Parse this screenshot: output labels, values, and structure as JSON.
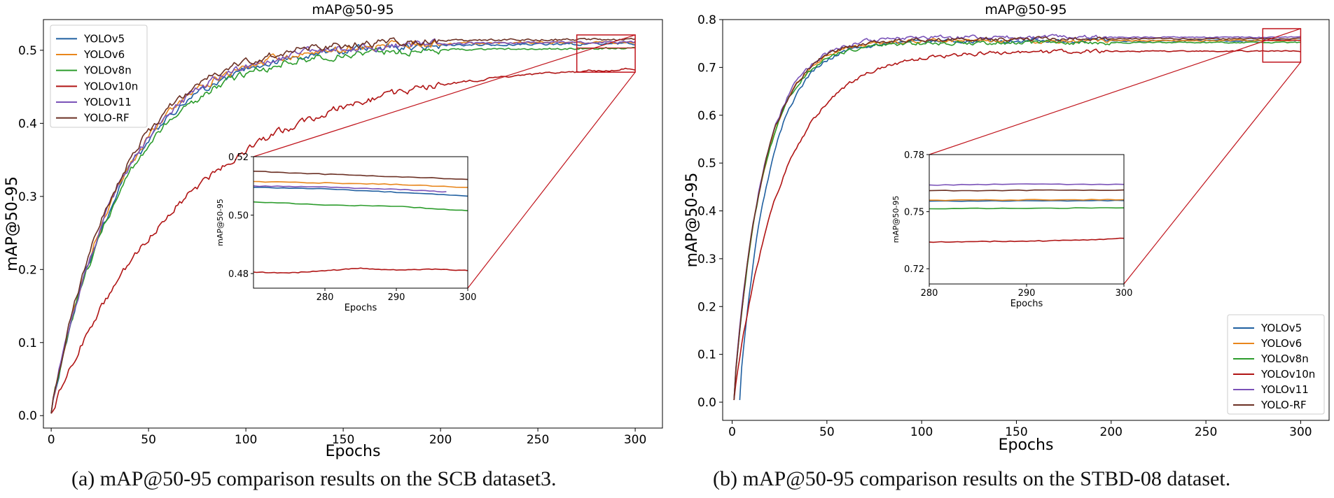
{
  "colors": {
    "YOLOv5": "#1f5fa0",
    "YOLOv6": "#e8861c",
    "YOLOv8n": "#2c9c2c",
    "YOLOv10n": "#b01414",
    "YOLOv11": "#7a52b8",
    "YOLO-RF": "#6b3024",
    "zoom": "#c0141c"
  },
  "chart_data": [
    {
      "id": "a",
      "type": "line",
      "title": "mAP@50-95",
      "xlabel": "Epochs",
      "ylabel": "mAP@50-95",
      "xlim": [
        -4,
        314
      ],
      "ylim": [
        -0.017,
        0.542
      ],
      "xticks": [
        0,
        50,
        100,
        150,
        200,
        250,
        300
      ],
      "yticks": [
        0.0,
        0.1,
        0.2,
        0.3,
        0.4,
        0.5
      ],
      "ytick_labels": [
        "0.0",
        "0.1",
        "0.2",
        "0.3",
        "0.4",
        "0.5"
      ],
      "legend": "top-left",
      "caption": "(a) mAP@50-95 comparison results on the SCB dataset3.",
      "series": [
        {
          "name": "YOLOv5",
          "final": 0.509,
          "tau": 38,
          "start": 0,
          "end": 300,
          "noise": 0.006
        },
        {
          "name": "YOLOv6",
          "final": 0.511,
          "tau": 37,
          "start": 0,
          "end": 300,
          "noise": 0.006
        },
        {
          "name": "YOLOv8n",
          "final": 0.503,
          "tau": 38,
          "start": 0,
          "end": 300,
          "noise": 0.006
        },
        {
          "name": "YOLOv10n",
          "final": 0.482,
          "tau": 72,
          "start": 0,
          "end": 300,
          "noise": 0.006
        },
        {
          "name": "YOLOv11",
          "final": 0.511,
          "tau": 37,
          "start": 0,
          "end": 300,
          "noise": 0.006
        },
        {
          "name": "YOLO-RF",
          "final": 0.515,
          "tau": 36,
          "start": 0,
          "end": 300,
          "noise": 0.006
        }
      ],
      "zoom_box": {
        "x": [
          270,
          300
        ],
        "y": [
          0.47,
          0.521
        ]
      },
      "inset": {
        "xlabel": "Epochs",
        "ylabel": "mAP@50-95",
        "xlim": [
          270,
          300
        ],
        "ylim": [
          0.475,
          0.52
        ],
        "xticks": [
          280,
          290,
          300
        ],
        "yticks": [
          0.48,
          0.5,
          0.52
        ],
        "ytick_labels": [
          "0.48",
          "0.50",
          "0.52"
        ],
        "series": [
          {
            "name": "YOLOv5",
            "values": [
              [
                270,
                0.5095
              ],
              [
                280,
                0.509
              ],
              [
                290,
                0.5078
              ],
              [
                300,
                0.5065
              ]
            ]
          },
          {
            "name": "YOLOv6",
            "values": [
              [
                270,
                0.5115
              ],
              [
                280,
                0.511
              ],
              [
                290,
                0.5105
              ],
              [
                300,
                0.5095
              ]
            ]
          },
          {
            "name": "YOLOv8n",
            "values": [
              [
                270,
                0.5045
              ],
              [
                280,
                0.5035
              ],
              [
                290,
                0.503
              ],
              [
                300,
                0.5015
              ]
            ]
          },
          {
            "name": "YOLOv10n",
            "values": [
              [
                270,
                0.4805
              ],
              [
                275,
                0.4802
              ],
              [
                280,
                0.481
              ],
              [
                285,
                0.4818
              ],
              [
                290,
                0.4812
              ],
              [
                295,
                0.4815
              ],
              [
                300,
                0.481
              ]
            ]
          },
          {
            "name": "YOLOv11",
            "values": [
              [
                270,
                0.51
              ],
              [
                280,
                0.5096
              ],
              [
                290,
                0.5088
              ],
              [
                297,
                0.508
              ]
            ]
          },
          {
            "name": "YOLO-RF",
            "values": [
              [
                270,
                0.515
              ],
              [
                280,
                0.514
              ],
              [
                290,
                0.5132
              ],
              [
                300,
                0.5122
              ]
            ]
          }
        ]
      }
    },
    {
      "id": "b",
      "type": "line",
      "title": "mAP@50-95",
      "xlabel": "Epochs",
      "ylabel": "mAP@50-95",
      "xlim": [
        -5,
        315
      ],
      "ylim": [
        -0.038,
        0.8
      ],
      "xticks": [
        0,
        50,
        100,
        150,
        200,
        250,
        300
      ],
      "yticks": [
        0.0,
        0.1,
        0.2,
        0.3,
        0.4,
        0.5,
        0.6,
        0.7,
        0.8
      ],
      "ytick_labels": [
        "0.0",
        "0.1",
        "0.2",
        "0.3",
        "0.4",
        "0.5",
        "0.6",
        "0.7",
        "0.8"
      ],
      "legend": "bottom-right",
      "caption": "(b) mAP@50-95 comparison results on the STBD-08 dataset.",
      "series": [
        {
          "name": "YOLOv5",
          "final": 0.756,
          "tau": 16,
          "start": 4,
          "end": 300,
          "noise": 0.005
        },
        {
          "name": "YOLOv6",
          "final": 0.756,
          "tau": 16,
          "start": 1,
          "end": 300,
          "noise": 0.005
        },
        {
          "name": "YOLOv8n",
          "final": 0.752,
          "tau": 16,
          "start": 1,
          "end": 300,
          "noise": 0.005
        },
        {
          "name": "YOLOv10n",
          "final": 0.734,
          "tau": 26,
          "start": 1,
          "end": 300,
          "noise": 0.005
        },
        {
          "name": "YOLOv11",
          "final": 0.763,
          "tau": 16,
          "start": 1,
          "end": 300,
          "noise": 0.005
        },
        {
          "name": "YOLO-RF",
          "final": 0.76,
          "tau": 16,
          "start": 1,
          "end": 300,
          "noise": 0.005
        }
      ],
      "zoom_box": {
        "x": [
          280,
          300
        ],
        "y": [
          0.711,
          0.781
        ]
      },
      "inset": {
        "xlabel": "Epochs",
        "ylabel": "mAP@50-95",
        "xlim": [
          280,
          300
        ],
        "ylim": [
          0.712,
          0.78
        ],
        "xticks": [
          280,
          290,
          300
        ],
        "yticks": [
          0.72,
          0.75,
          0.78
        ],
        "ytick_labels": [
          "0.72",
          "0.75",
          "0.78"
        ],
        "series": [
          {
            "name": "YOLOv5",
            "values": [
              [
                280,
                0.7555
              ],
              [
                290,
                0.7557
              ],
              [
                300,
                0.7558
              ]
            ]
          },
          {
            "name": "YOLOv6",
            "values": [
              [
                280,
                0.756
              ],
              [
                290,
                0.7562
              ],
              [
                300,
                0.7563
              ]
            ]
          },
          {
            "name": "YOLOv8n",
            "values": [
              [
                280,
                0.7515
              ],
              [
                290,
                0.7518
              ],
              [
                300,
                0.752
              ]
            ]
          },
          {
            "name": "YOLOv10n",
            "values": [
              [
                280,
                0.734
              ],
              [
                285,
                0.7343
              ],
              [
                290,
                0.7345
              ],
              [
                295,
                0.735
              ],
              [
                300,
                0.736
              ]
            ]
          },
          {
            "name": "YOLOv11",
            "values": [
              [
                280,
                0.764
              ],
              [
                290,
                0.7645
              ],
              [
                300,
                0.7643
              ]
            ]
          },
          {
            "name": "YOLO-RF",
            "values": [
              [
                280,
                0.761
              ],
              [
                290,
                0.7612
              ],
              [
                300,
                0.7614
              ]
            ]
          }
        ]
      }
    }
  ]
}
